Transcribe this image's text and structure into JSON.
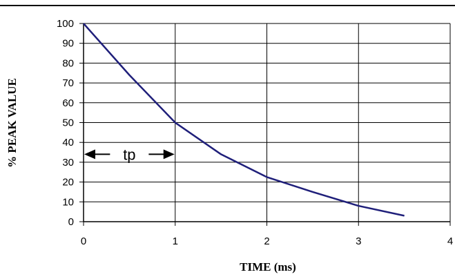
{
  "chart_data": {
    "type": "line",
    "title": "",
    "xlabel": "TIME (ms)",
    "ylabel": "% PEAK VALUE",
    "xlim": [
      0,
      4
    ],
    "ylim": [
      0,
      100
    ],
    "x_ticks": [
      0,
      1,
      2,
      3,
      4
    ],
    "y_ticks": [
      0,
      10,
      20,
      30,
      40,
      50,
      60,
      70,
      80,
      90,
      100
    ],
    "grid": true,
    "series": [
      {
        "color": "#1f1f7a",
        "x": [
          0,
          0.5,
          1,
          1.5,
          2,
          2.5,
          3,
          3.5
        ],
        "y": [
          100,
          74,
          50,
          34,
          22.5,
          15,
          8,
          3
        ]
      }
    ],
    "annotations": [
      {
        "text": "tp",
        "type": "double-arrow",
        "x_from": 0,
        "x_to": 1,
        "y": 34
      }
    ]
  }
}
